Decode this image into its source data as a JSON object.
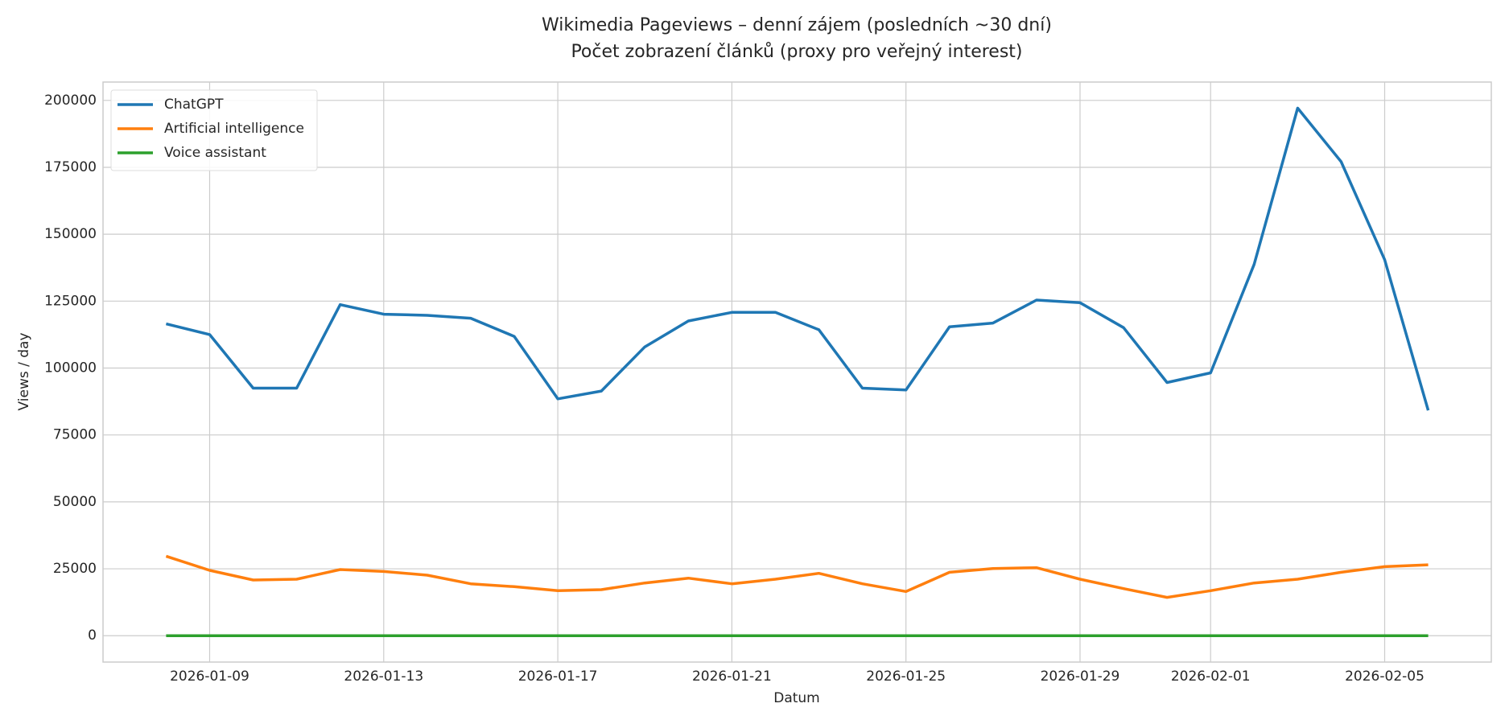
{
  "chart_data": {
    "type": "line",
    "title": "Wikimedia Pageviews – denní zájem (posledních ~30 dní)",
    "subtitle": "Počet zobrazení článků (proxy pro veřejný interest)",
    "x_label": "Datum",
    "y_label": "Views / day",
    "x": [
      "2026-01-08",
      "2026-01-09",
      "2026-01-10",
      "2026-01-11",
      "2026-01-12",
      "2026-01-13",
      "2026-01-14",
      "2026-01-15",
      "2026-01-16",
      "2026-01-17",
      "2026-01-18",
      "2026-01-19",
      "2026-01-20",
      "2026-01-21",
      "2026-01-22",
      "2026-01-23",
      "2026-01-24",
      "2026-01-25",
      "2026-01-26",
      "2026-01-27",
      "2026-01-28",
      "2026-01-29",
      "2026-01-30",
      "2026-01-31",
      "2026-02-01",
      "2026-02-02",
      "2026-02-03",
      "2026-02-04",
      "2026-02-05",
      "2026-02-06"
    ],
    "series": [
      {
        "name": "ChatGPT",
        "color": "#1f77b4",
        "values": [
          116500,
          112500,
          92500,
          92500,
          123700,
          120100,
          119700,
          118600,
          111800,
          88500,
          91400,
          107900,
          117600,
          120800,
          120800,
          114300,
          92500,
          91800,
          115400,
          116800,
          125400,
          124400,
          115100,
          94600,
          98200,
          138700,
          197100,
          177100,
          140500,
          84200
        ]
      },
      {
        "name": "Artificial intelligence",
        "color": "#ff7f0e",
        "values": [
          29700,
          24400,
          20800,
          21100,
          24700,
          24000,
          22600,
          19400,
          18300,
          16800,
          17200,
          19700,
          21500,
          19400,
          21100,
          23300,
          19400,
          16500,
          23700,
          25100,
          25400,
          21100,
          17600,
          14300,
          16800,
          19700,
          21100,
          23700,
          25800,
          26500
        ]
      },
      {
        "name": "Voice assistant",
        "color": "#2ca02c",
        "values": [
          0,
          0,
          0,
          0,
          0,
          0,
          0,
          0,
          0,
          0,
          0,
          0,
          0,
          0,
          0,
          0,
          0,
          0,
          0,
          0,
          0,
          0,
          0,
          0,
          0,
          0,
          0,
          0,
          0,
          0
        ]
      }
    ],
    "xlim": [
      "2026-01-06T13:12",
      "2026-02-07T10:48"
    ],
    "xticks": [
      "2026-01-09",
      "2026-01-13",
      "2026-01-17",
      "2026-01-21",
      "2026-01-25",
      "2026-01-29",
      "2026-02-01",
      "2026-02-05"
    ],
    "ylim": [
      -9850,
      206850
    ],
    "yticks": [
      0,
      25000,
      50000,
      75000,
      100000,
      125000,
      150000,
      175000,
      200000
    ],
    "grid": true,
    "legend": "upper left"
  }
}
